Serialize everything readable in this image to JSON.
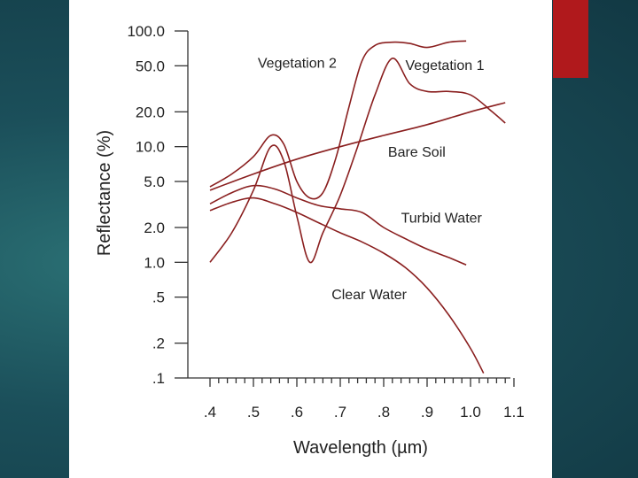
{
  "chart_data": {
    "type": "line",
    "title": "",
    "xlabel": "Wavelength (µm)",
    "ylabel": "Reflectance (%)",
    "y_scale": "log",
    "xlim": [
      0.4,
      1.1
    ],
    "ylim": [
      0.1,
      100
    ],
    "x_ticks": [
      {
        "value": 0.4,
        "label": ".4"
      },
      {
        "value": 0.5,
        "label": ".5"
      },
      {
        "value": 0.6,
        "label": ".6"
      },
      {
        "value": 0.7,
        "label": ".7"
      },
      {
        "value": 0.8,
        "label": ".8"
      },
      {
        "value": 0.9,
        "label": ".9"
      },
      {
        "value": 1.0,
        "label": "1.0"
      },
      {
        "value": 1.1,
        "label": "1.1"
      }
    ],
    "y_ticks": [
      {
        "value": 100,
        "label": "100.0"
      },
      {
        "value": 50,
        "label": "50.0"
      },
      {
        "value": 20,
        "label": "20.0"
      },
      {
        "value": 10,
        "label": "10.0"
      },
      {
        "value": 5,
        "label": "5.0"
      },
      {
        "value": 2,
        "label": "2.0"
      },
      {
        "value": 1,
        "label": "1.0"
      },
      {
        "value": 0.5,
        "label": ".5"
      },
      {
        "value": 0.2,
        "label": ".2"
      },
      {
        "value": 0.1,
        "label": ".1"
      }
    ],
    "series": [
      {
        "name": "Vegetation 2",
        "x": [
          0.4,
          0.45,
          0.5,
          0.54,
          0.57,
          0.6,
          0.63,
          0.66,
          0.69,
          0.72,
          0.75,
          0.78,
          0.82,
          0.86,
          0.9,
          0.95,
          0.99
        ],
        "y": [
          4.5,
          5.8,
          8.2,
          12.5,
          10.5,
          5.0,
          3.6,
          4.0,
          8.0,
          22,
          55,
          75,
          80,
          78,
          72,
          80,
          82
        ]
      },
      {
        "name": "Vegetation 1",
        "x": [
          0.4,
          0.45,
          0.5,
          0.54,
          0.57,
          0.6,
          0.63,
          0.66,
          0.7,
          0.74,
          0.78,
          0.82,
          0.86,
          0.9,
          0.95,
          1.0,
          1.05,
          1.08
        ],
        "y": [
          1.0,
          1.8,
          4.2,
          10.0,
          7.5,
          2.5,
          1.0,
          1.8,
          3.8,
          10.0,
          28,
          58,
          35,
          30,
          30,
          28,
          20,
          16
        ]
      },
      {
        "name": "Bare Soil",
        "x": [
          0.4,
          0.5,
          0.6,
          0.7,
          0.8,
          0.9,
          1.0,
          1.08
        ],
        "y": [
          4.2,
          5.8,
          7.8,
          10.0,
          12.5,
          15.5,
          20,
          24
        ]
      },
      {
        "name": "Turbid Water",
        "x": [
          0.4,
          0.45,
          0.5,
          0.55,
          0.6,
          0.65,
          0.7,
          0.75,
          0.8,
          0.85,
          0.9,
          0.95,
          0.99
        ],
        "y": [
          3.2,
          4.0,
          4.6,
          4.3,
          3.6,
          3.1,
          2.9,
          2.7,
          2.0,
          1.6,
          1.3,
          1.1,
          0.95
        ]
      },
      {
        "name": "Clear Water",
        "x": [
          0.4,
          0.45,
          0.5,
          0.55,
          0.6,
          0.65,
          0.7,
          0.75,
          0.8,
          0.85,
          0.9,
          0.95,
          1.0,
          1.03
        ],
        "y": [
          2.8,
          3.3,
          3.6,
          3.2,
          2.7,
          2.2,
          1.8,
          1.5,
          1.2,
          0.9,
          0.6,
          0.35,
          0.18,
          0.11
        ]
      }
    ],
    "annotations": [
      {
        "text": "Vegetation 2",
        "series": "Vegetation 2",
        "x": 0.51,
        "y": 48
      },
      {
        "text": "Vegetation 1",
        "series": "Vegetation 1",
        "x": 0.85,
        "y": 46
      },
      {
        "text": "Bare Soil",
        "series": "Bare Soil",
        "x": 0.81,
        "y": 8.2
      },
      {
        "text": "Turbid Water",
        "series": "Turbid Water",
        "x": 0.84,
        "y": 2.2
      },
      {
        "text": "Clear Water",
        "series": "Clear Water",
        "x": 0.68,
        "y": 0.48
      }
    ],
    "grid": false,
    "legend": "none",
    "line_color": "#8a1f1f"
  },
  "colors": {
    "accent": "#b0191c",
    "panel": "#ffffff",
    "line": "#8a1f1f"
  }
}
